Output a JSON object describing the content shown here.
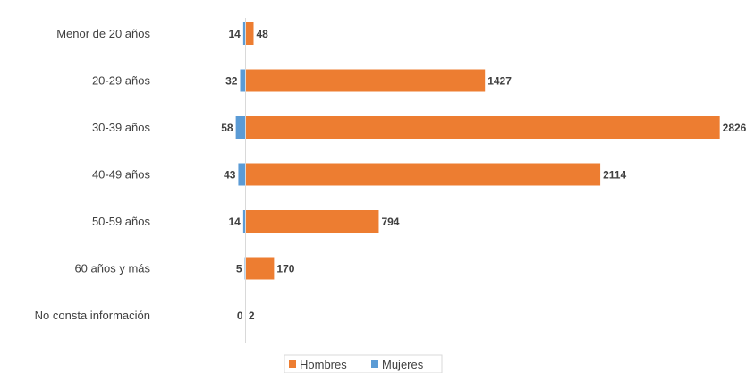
{
  "chart_data": {
    "type": "bar",
    "orientation": "horizontal",
    "stacking": "diverging",
    "categories": [
      "Menor de 20 años",
      "20-29 años",
      "30-39 años",
      "40-49 años",
      "50-59 años",
      "60 años y más",
      "No consta información"
    ],
    "series": [
      {
        "name": "Hombres",
        "color": "#ED7D31",
        "values": [
          48,
          1427,
          2826,
          2114,
          794,
          170,
          2
        ]
      },
      {
        "name": "Mujeres",
        "color": "#5B9BD5",
        "values": [
          14,
          32,
          58,
          43,
          14,
          5,
          0
        ]
      }
    ],
    "legend": {
      "placement": "bottom",
      "items": [
        "Hombres",
        "Mujeres"
      ]
    },
    "grid": false
  }
}
